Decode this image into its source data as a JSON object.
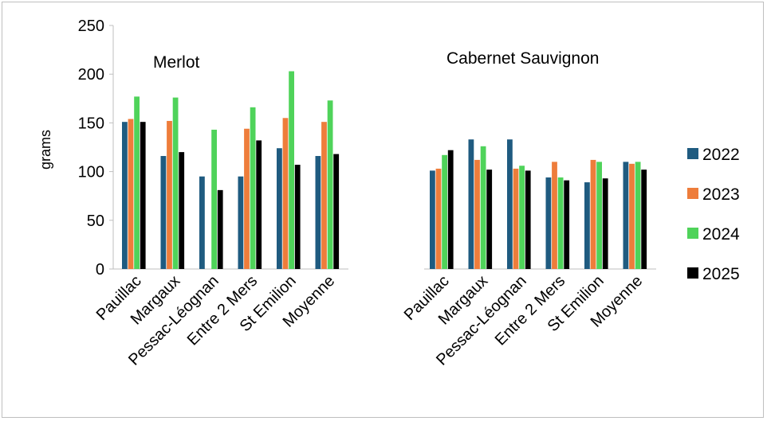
{
  "chart_data": {
    "type": "bar",
    "ylabel": "grams",
    "ylim": [
      0,
      250
    ],
    "yticks": [
      0,
      50,
      100,
      150,
      200,
      250
    ],
    "grid": false,
    "legend_position": "right",
    "series": [
      {
        "name": "2022",
        "color": "#1f5b80"
      },
      {
        "name": "2023",
        "color": "#ee7d3b"
      },
      {
        "name": "2024",
        "color": "#4fd35a"
      },
      {
        "name": "2025",
        "color": "#000000"
      }
    ],
    "groups": [
      {
        "title": "Merlot",
        "categories": [
          "Pauillac",
          "Margaux",
          "Pessac-Léognan",
          "Entre 2 Mers",
          "St Emilion",
          "Moyenne"
        ],
        "values": {
          "2022": [
            151,
            116,
            95,
            95,
            124,
            116
          ],
          "2023": [
            154,
            152,
            0,
            144,
            155,
            151
          ],
          "2024": [
            177,
            176,
            143,
            166,
            203,
            173
          ],
          "2025": [
            151,
            120,
            81,
            132,
            107,
            118
          ]
        }
      },
      {
        "title": "Cabernet Sauvignon",
        "categories": [
          "Pauillac",
          "Margaux",
          "Pessac-Léognan",
          "Entre 2 Mers",
          "St Emilion",
          "Moyenne"
        ],
        "values": {
          "2022": [
            101,
            133,
            133,
            94,
            89,
            110
          ],
          "2023": [
            103,
            112,
            103,
            110,
            112,
            108
          ],
          "2024": [
            117,
            126,
            106,
            94,
            110,
            110
          ],
          "2025": [
            122,
            102,
            101,
            91,
            93,
            102
          ]
        }
      }
    ]
  }
}
